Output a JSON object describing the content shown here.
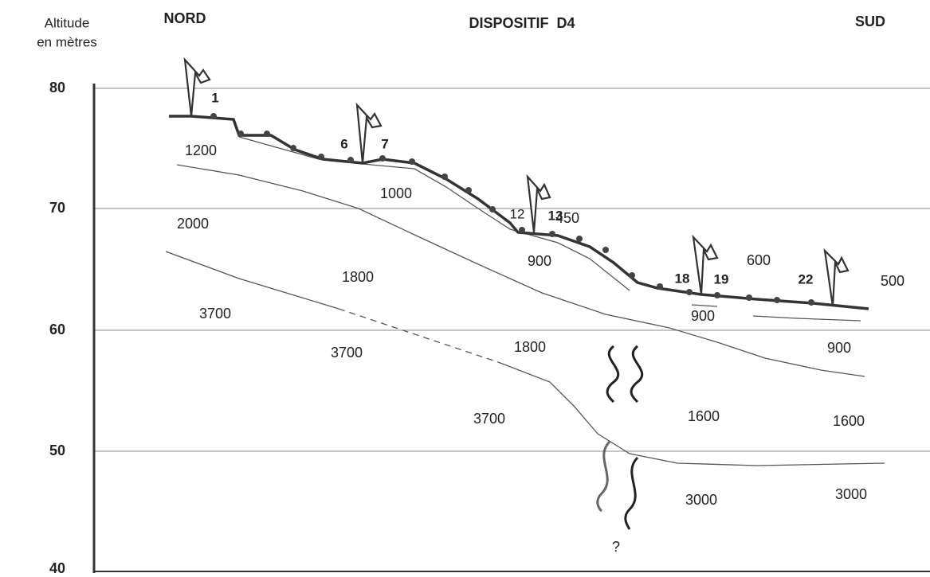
{
  "header": {
    "axis_title": [
      "Altitude",
      "en mètres"
    ],
    "north": "NORD",
    "title": "DISPOSITIF  D4",
    "south": "SUD"
  },
  "axis": {
    "ticks": [
      "80",
      "70",
      "60",
      "50",
      "40"
    ]
  },
  "electrodes": [
    "1",
    "6",
    "7",
    "12",
    "13",
    "18",
    "19",
    "22"
  ],
  "resistivities": [
    "1200",
    "1000",
    "2000",
    "450",
    "900",
    "600",
    "500",
    "1800",
    "3700",
    "900",
    "3700",
    "1800",
    "900",
    "3700",
    "1600",
    "1600",
    "3000",
    "3000"
  ],
  "unknown": "?"
}
